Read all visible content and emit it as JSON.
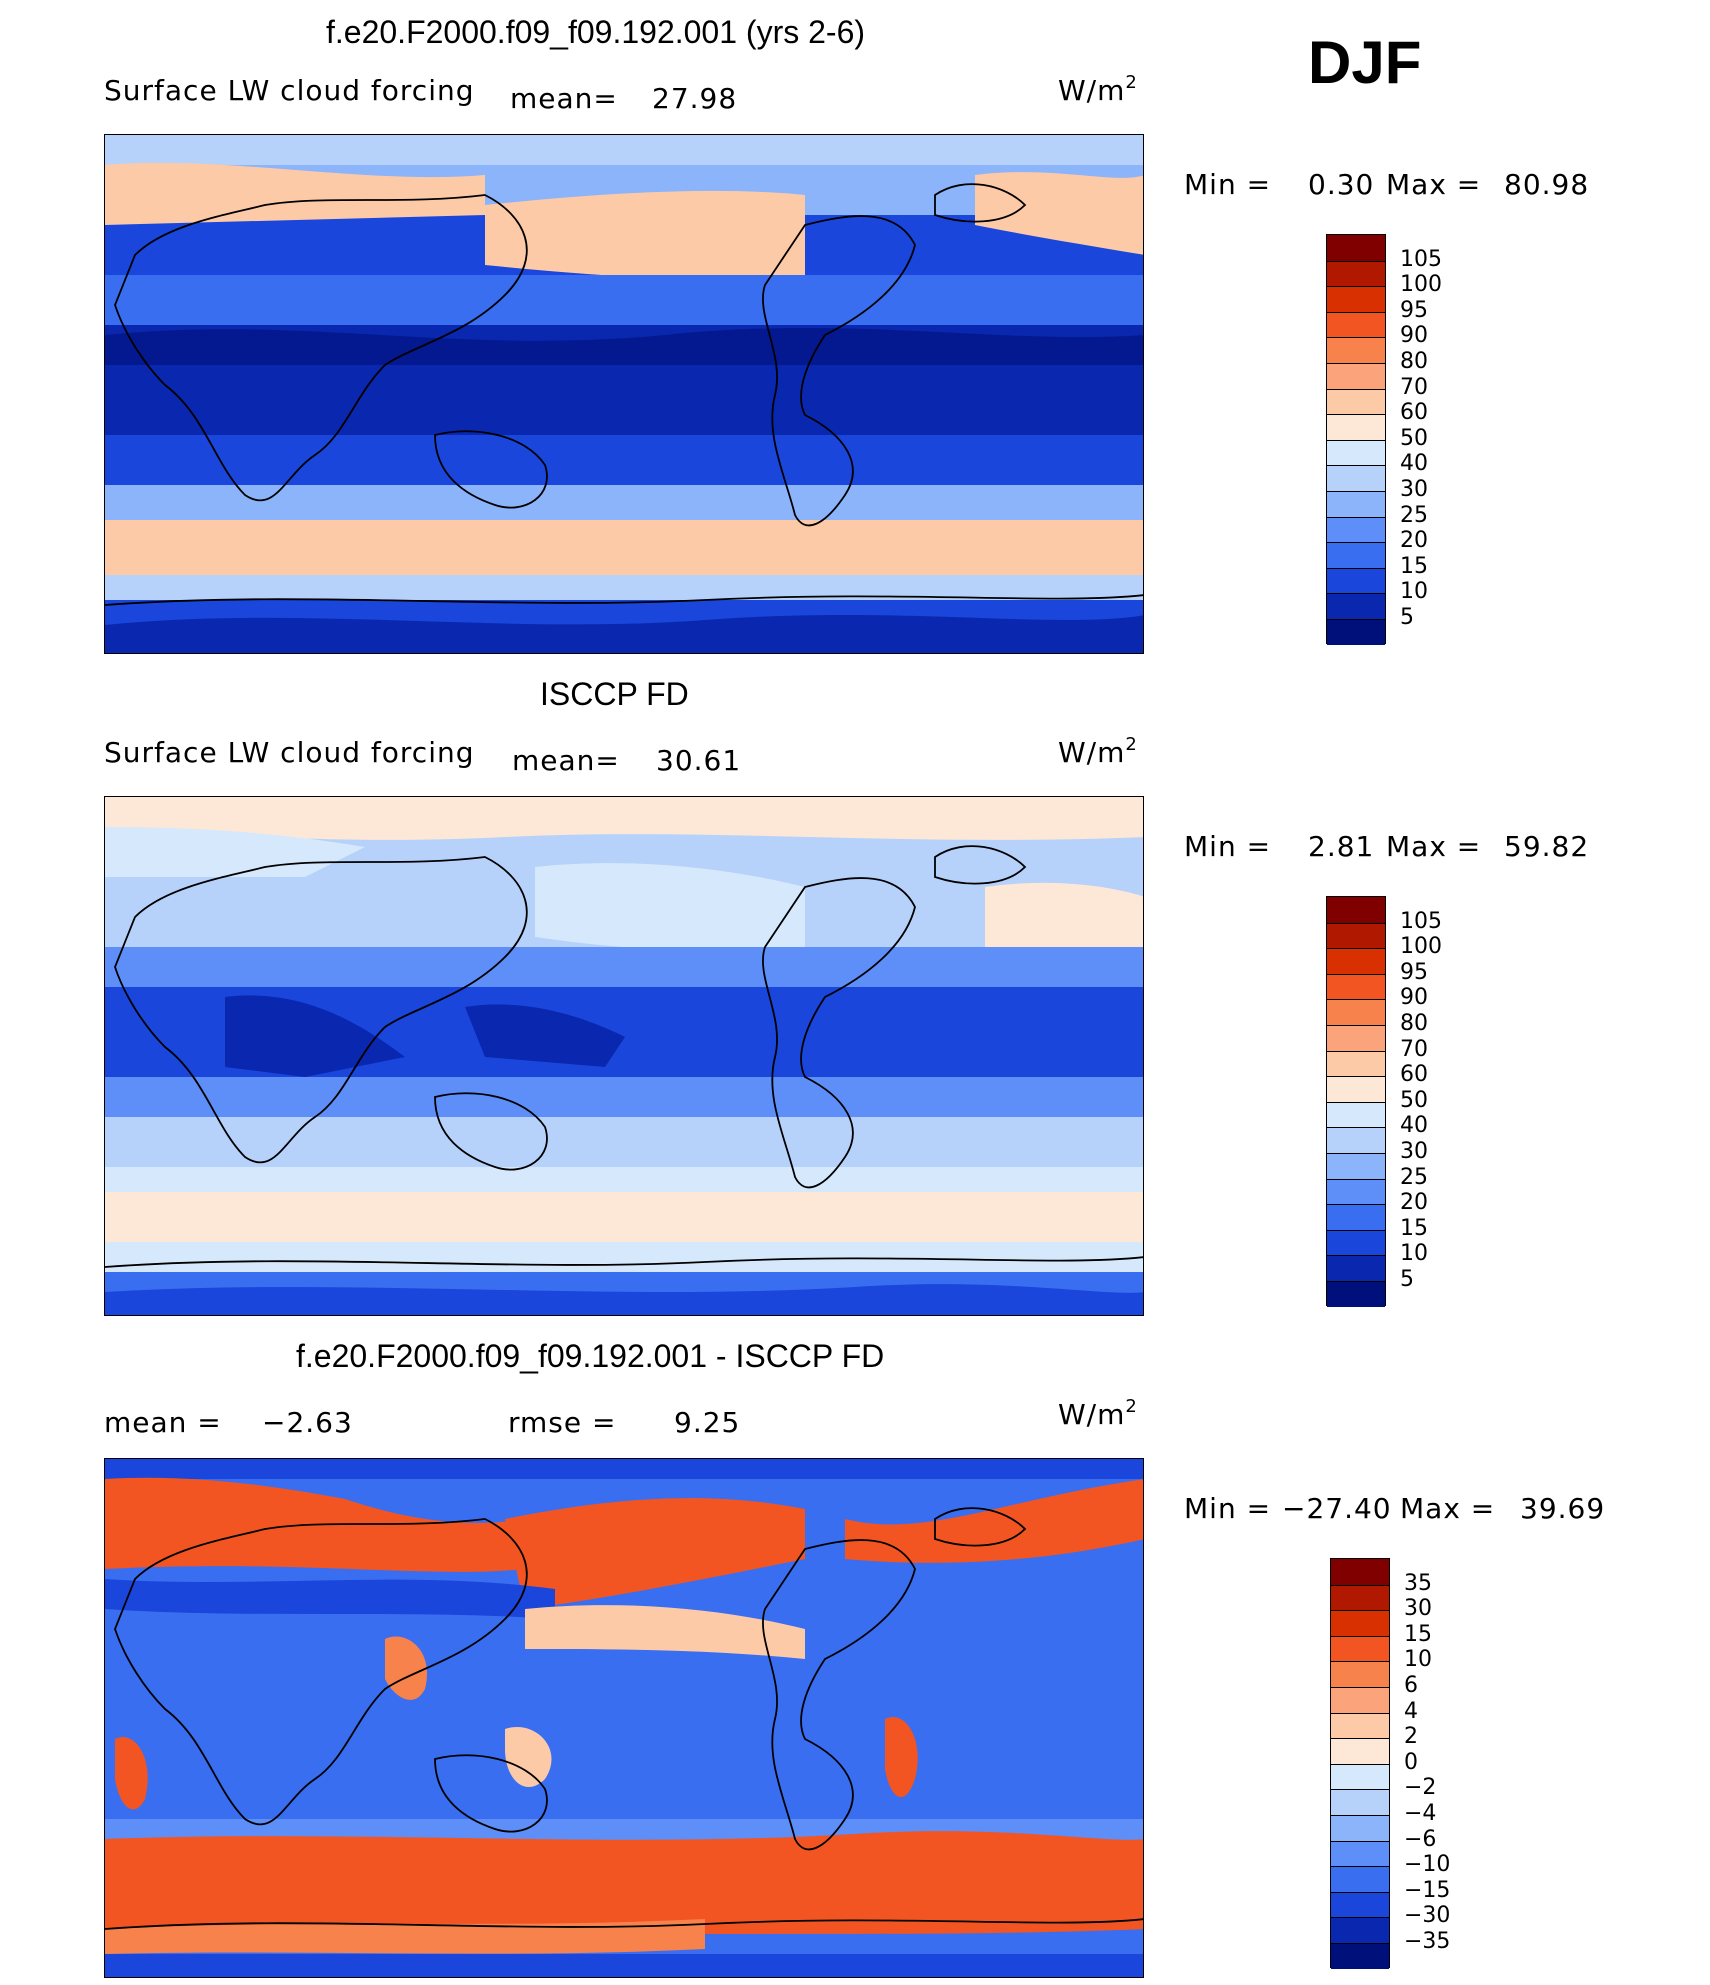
{
  "season": "DJF",
  "panels": [
    {
      "title": "f.e20.F2000.f09_f09.192.001 (yrs 2-6)",
      "variable": "Surface LW cloud forcing",
      "stat1_label": "mean=",
      "stat1_value": "27.98",
      "units_base": "W/m",
      "units_exp": "2",
      "min_label": "Min =",
      "min_value": "0.30",
      "max_label": "Max =",
      "max_value": "80.98",
      "colorbar": {
        "levels": [
          "105",
          "100",
          "95",
          "90",
          "80",
          "70",
          "60",
          "50",
          "40",
          "30",
          "25",
          "20",
          "15",
          "10",
          "5"
        ],
        "colors": [
          "#800000",
          "#b01800",
          "#d83000",
          "#f25522",
          "#f8824c",
          "#fba47c",
          "#fdcaa8",
          "#fde8d8",
          "#d6e8fb",
          "#b6d2fa",
          "#8cb4fa",
          "#5e8ef7",
          "#3a6ef0",
          "#1a46db",
          "#0a27b0",
          "#00107a"
        ]
      }
    },
    {
      "title": "ISCCP FD",
      "variable": "Surface LW cloud forcing",
      "stat1_label": "mean=",
      "stat1_value": "30.61",
      "units_base": "W/m",
      "units_exp": "2",
      "min_label": "Min =",
      "min_value": "2.81",
      "max_label": "Max =",
      "max_value": "59.82",
      "colorbar": {
        "levels": [
          "105",
          "100",
          "95",
          "90",
          "80",
          "70",
          "60",
          "50",
          "40",
          "30",
          "25",
          "20",
          "15",
          "10",
          "5"
        ],
        "colors": [
          "#800000",
          "#b01800",
          "#d83000",
          "#f25522",
          "#f8824c",
          "#fba47c",
          "#fdcaa8",
          "#fde8d8",
          "#d6e8fb",
          "#b6d2fa",
          "#8cb4fa",
          "#5e8ef7",
          "#3a6ef0",
          "#1a46db",
          "#0a27b0",
          "#00107a"
        ]
      }
    },
    {
      "title": "f.e20.F2000.f09_f09.192.001 - ISCCP FD",
      "stat1_label": "mean =",
      "stat1_value": "−2.63",
      "stat2_label": "rmse =",
      "stat2_value": "9.25",
      "units_base": "W/m",
      "units_exp": "2",
      "min_label": "Min =",
      "min_value": "−27.40",
      "max_label": "Max =",
      "max_value": "39.69",
      "colorbar": {
        "levels": [
          "35",
          "30",
          "15",
          "10",
          "6",
          "4",
          "2",
          "0",
          "−2",
          "−4",
          "−6",
          "−10",
          "−15",
          "−30",
          "−35"
        ],
        "colors": [
          "#800000",
          "#b01800",
          "#d83000",
          "#f25522",
          "#f8824c",
          "#fba47c",
          "#fdcaa8",
          "#fde8d8",
          "#d6e8fb",
          "#b6d2fa",
          "#8cb4fa",
          "#5e8ef7",
          "#3a6ef0",
          "#1a46db",
          "#0a27b0",
          "#00107a"
        ]
      }
    }
  ],
  "chart_data": [
    {
      "type": "heatmap",
      "title": "f.e20.F2000.f09_f09.192.001 (yrs 2-6)",
      "subtitle": "Surface LW cloud forcing",
      "units": "W/m2",
      "mean": 27.98,
      "min": 0.3,
      "max": 80.98,
      "contour_levels": [
        5,
        10,
        15,
        20,
        25,
        30,
        40,
        50,
        60,
        70,
        80,
        90,
        95,
        100,
        105
      ],
      "x": "longitude (global map)",
      "y": "latitude (global map)"
    },
    {
      "type": "heatmap",
      "title": "ISCCP FD",
      "subtitle": "Surface LW cloud forcing",
      "units": "W/m2",
      "mean": 30.61,
      "min": 2.81,
      "max": 59.82,
      "contour_levels": [
        5,
        10,
        15,
        20,
        25,
        30,
        40,
        50,
        60,
        70,
        80,
        90,
        95,
        100,
        105
      ]
    },
    {
      "type": "heatmap",
      "title": "f.e20.F2000.f09_f09.192.001 - ISCCP FD",
      "units": "W/m2",
      "mean": -2.63,
      "rmse": 9.25,
      "min": -27.4,
      "max": 39.69,
      "contour_levels": [
        -35,
        -30,
        -15,
        -10,
        -6,
        -4,
        -2,
        0,
        2,
        4,
        6,
        10,
        15,
        30,
        35
      ]
    }
  ]
}
